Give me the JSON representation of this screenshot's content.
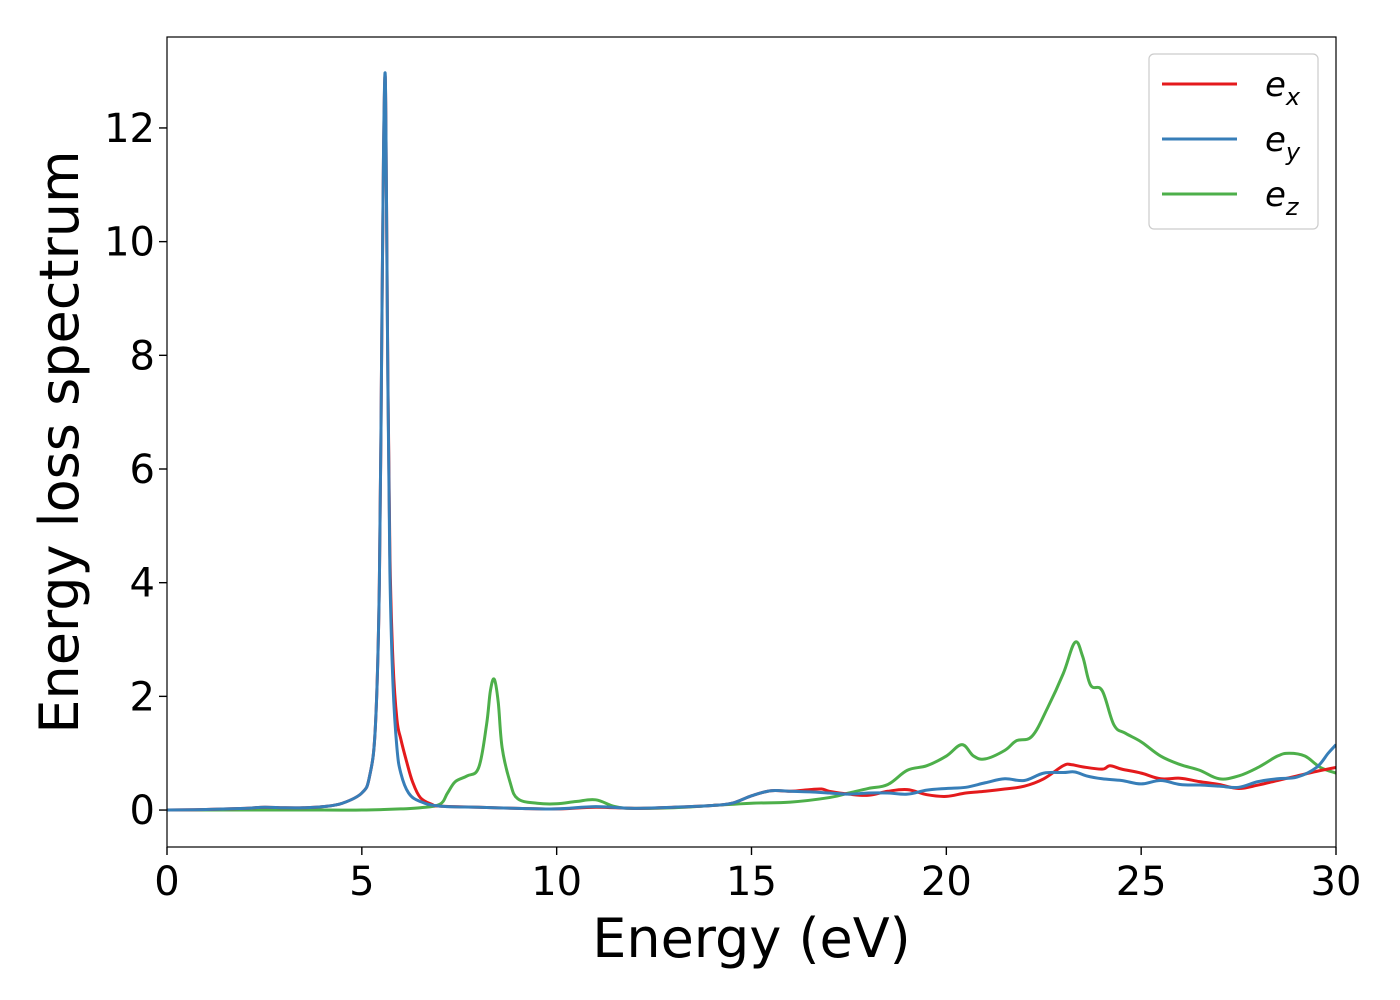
{
  "chart_data": {
    "type": "line",
    "title": "",
    "xlabel": "Energy (eV)",
    "ylabel": "Energy loss spectrum",
    "xlim": [
      0,
      30
    ],
    "ylim": [
      -0.65,
      13.6
    ],
    "xticks": [
      0,
      5,
      10,
      15,
      20,
      25,
      30
    ],
    "yticks": [
      0,
      2,
      4,
      6,
      8,
      10,
      12
    ],
    "xtick_labels": [
      "0",
      "5",
      "10",
      "15",
      "20",
      "25",
      "30"
    ],
    "ytick_labels": [
      "0",
      "2",
      "4",
      "6",
      "8",
      "10",
      "12"
    ],
    "grid": false,
    "legend_position": "top-right",
    "series": [
      {
        "name": "e_x",
        "label_base": "e",
        "label_sub": "x",
        "color": "#e41a1c",
        "points": [
          [
            0,
            0
          ],
          [
            1,
            0.01
          ],
          [
            2,
            0.03
          ],
          [
            2.5,
            0.05
          ],
          [
            3,
            0.04
          ],
          [
            3.5,
            0.04
          ],
          [
            4,
            0.06
          ],
          [
            4.5,
            0.12
          ],
          [
            5,
            0.3
          ],
          [
            5.2,
            0.6
          ],
          [
            5.35,
            1.5
          ],
          [
            5.45,
            4
          ],
          [
            5.52,
            9
          ],
          [
            5.56,
            11.7
          ],
          [
            5.6,
            12.9
          ],
          [
            5.63,
            11
          ],
          [
            5.67,
            7.5
          ],
          [
            5.72,
            4.5
          ],
          [
            5.8,
            2.6
          ],
          [
            5.9,
            1.6
          ],
          [
            6.0,
            1.25
          ],
          [
            6.15,
            0.85
          ],
          [
            6.3,
            0.5
          ],
          [
            6.5,
            0.22
          ],
          [
            6.8,
            0.1
          ],
          [
            7,
            0.07
          ],
          [
            8,
            0.05
          ],
          [
            9,
            0.03
          ],
          [
            10,
            0.02
          ],
          [
            11,
            0.05
          ],
          [
            12,
            0.03
          ],
          [
            13,
            0.05
          ],
          [
            14,
            0.08
          ],
          [
            14.5,
            0.12
          ],
          [
            15,
            0.25
          ],
          [
            15.5,
            0.34
          ],
          [
            16,
            0.33
          ],
          [
            16.5,
            0.36
          ],
          [
            16.8,
            0.37
          ],
          [
            17,
            0.33
          ],
          [
            17.5,
            0.28
          ],
          [
            18,
            0.26
          ],
          [
            18.5,
            0.33
          ],
          [
            19,
            0.36
          ],
          [
            19.5,
            0.27
          ],
          [
            20,
            0.24
          ],
          [
            20.5,
            0.3
          ],
          [
            21,
            0.33
          ],
          [
            21.5,
            0.37
          ],
          [
            22,
            0.42
          ],
          [
            22.5,
            0.55
          ],
          [
            23,
            0.78
          ],
          [
            23.2,
            0.8
          ],
          [
            23.5,
            0.76
          ],
          [
            24,
            0.72
          ],
          [
            24.2,
            0.78
          ],
          [
            24.5,
            0.72
          ],
          [
            25,
            0.65
          ],
          [
            25.5,
            0.55
          ],
          [
            26,
            0.56
          ],
          [
            26.5,
            0.5
          ],
          [
            27,
            0.45
          ],
          [
            27.5,
            0.38
          ],
          [
            28,
            0.44
          ],
          [
            28.5,
            0.52
          ],
          [
            29,
            0.6
          ],
          [
            29.5,
            0.68
          ],
          [
            30,
            0.75
          ]
        ]
      },
      {
        "name": "e_y",
        "label_base": "e",
        "label_sub": "y",
        "color": "#377eb8",
        "points": [
          [
            0,
            0
          ],
          [
            1,
            0.01
          ],
          [
            2,
            0.03
          ],
          [
            2.5,
            0.05
          ],
          [
            3,
            0.04
          ],
          [
            3.5,
            0.04
          ],
          [
            4,
            0.06
          ],
          [
            4.5,
            0.12
          ],
          [
            5,
            0.3
          ],
          [
            5.2,
            0.6
          ],
          [
            5.35,
            1.5
          ],
          [
            5.45,
            4
          ],
          [
            5.52,
            9
          ],
          [
            5.56,
            11.8
          ],
          [
            5.6,
            12.95
          ],
          [
            5.63,
            11
          ],
          [
            5.67,
            7.4
          ],
          [
            5.72,
            4.2
          ],
          [
            5.8,
            2.2
          ],
          [
            5.9,
            1.1
          ],
          [
            6.0,
            0.65
          ],
          [
            6.2,
            0.3
          ],
          [
            6.5,
            0.15
          ],
          [
            7,
            0.07
          ],
          [
            8,
            0.05
          ],
          [
            9,
            0.03
          ],
          [
            10,
            0.02
          ],
          [
            11,
            0.06
          ],
          [
            12,
            0.03
          ],
          [
            13,
            0.05
          ],
          [
            14,
            0.08
          ],
          [
            14.5,
            0.12
          ],
          [
            15,
            0.25
          ],
          [
            15.5,
            0.34
          ],
          [
            16,
            0.33
          ],
          [
            16.5,
            0.32
          ],
          [
            17,
            0.3
          ],
          [
            17.5,
            0.28
          ],
          [
            18,
            0.3
          ],
          [
            18.5,
            0.3
          ],
          [
            19,
            0.28
          ],
          [
            19.5,
            0.35
          ],
          [
            20,
            0.38
          ],
          [
            20.5,
            0.4
          ],
          [
            21,
            0.48
          ],
          [
            21.5,
            0.55
          ],
          [
            22,
            0.52
          ],
          [
            22.5,
            0.65
          ],
          [
            23,
            0.66
          ],
          [
            23.3,
            0.67
          ],
          [
            23.6,
            0.6
          ],
          [
            24,
            0.55
          ],
          [
            24.5,
            0.52
          ],
          [
            25,
            0.46
          ],
          [
            25.5,
            0.52
          ],
          [
            26,
            0.45
          ],
          [
            26.5,
            0.44
          ],
          [
            27,
            0.42
          ],
          [
            27.5,
            0.4
          ],
          [
            28,
            0.5
          ],
          [
            28.5,
            0.55
          ],
          [
            29,
            0.58
          ],
          [
            29.5,
            0.75
          ],
          [
            29.8,
            1.0
          ],
          [
            30,
            1.15
          ]
        ]
      },
      {
        "name": "e_z",
        "label_base": "e",
        "label_sub": "z",
        "color": "#4daf4a",
        "points": [
          [
            0,
            0
          ],
          [
            2,
            0
          ],
          [
            4,
            0
          ],
          [
            5,
            0
          ],
          [
            6,
            0.02
          ],
          [
            6.5,
            0.04
          ],
          [
            7,
            0.1
          ],
          [
            7.2,
            0.3
          ],
          [
            7.4,
            0.5
          ],
          [
            7.7,
            0.6
          ],
          [
            8,
            0.75
          ],
          [
            8.2,
            1.5
          ],
          [
            8.3,
            2.1
          ],
          [
            8.4,
            2.3
          ],
          [
            8.5,
            1.9
          ],
          [
            8.6,
            1.1
          ],
          [
            8.8,
            0.5
          ],
          [
            9,
            0.2
          ],
          [
            9.5,
            0.12
          ],
          [
            10,
            0.11
          ],
          [
            10.5,
            0.15
          ],
          [
            11,
            0.18
          ],
          [
            11.5,
            0.06
          ],
          [
            12,
            0.03
          ],
          [
            13,
            0.04
          ],
          [
            14,
            0.08
          ],
          [
            15,
            0.12
          ],
          [
            16,
            0.14
          ],
          [
            17,
            0.22
          ],
          [
            17.5,
            0.3
          ],
          [
            18,
            0.38
          ],
          [
            18.5,
            0.45
          ],
          [
            19,
            0.7
          ],
          [
            19.5,
            0.78
          ],
          [
            20,
            0.95
          ],
          [
            20.4,
            1.15
          ],
          [
            20.7,
            0.95
          ],
          [
            21,
            0.9
          ],
          [
            21.5,
            1.05
          ],
          [
            21.8,
            1.22
          ],
          [
            22.2,
            1.3
          ],
          [
            22.6,
            1.8
          ],
          [
            23,
            2.4
          ],
          [
            23.3,
            2.95
          ],
          [
            23.5,
            2.7
          ],
          [
            23.7,
            2.2
          ],
          [
            24,
            2.1
          ],
          [
            24.3,
            1.5
          ],
          [
            24.6,
            1.35
          ],
          [
            25,
            1.2
          ],
          [
            25.5,
            0.95
          ],
          [
            26,
            0.8
          ],
          [
            26.5,
            0.7
          ],
          [
            27,
            0.55
          ],
          [
            27.5,
            0.6
          ],
          [
            28,
            0.75
          ],
          [
            28.5,
            0.95
          ],
          [
            28.8,
            1.0
          ],
          [
            29.2,
            0.95
          ],
          [
            29.6,
            0.75
          ],
          [
            30,
            0.65
          ]
        ]
      }
    ]
  }
}
